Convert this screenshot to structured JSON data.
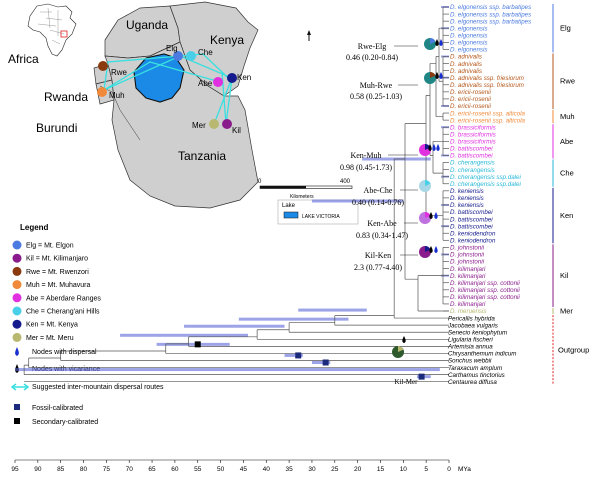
{
  "map": {
    "inset_label": "Africa",
    "countries": [
      {
        "id": "uganda",
        "name": "Uganda"
      },
      {
        "id": "kenya",
        "name": "Kenya"
      },
      {
        "id": "rwanda",
        "name": "Rwanda"
      },
      {
        "id": "burundi",
        "name": "Burundi"
      },
      {
        "id": "tanzania",
        "name": "Tanzania"
      }
    ],
    "mountains": [
      {
        "id": "Elg",
        "label": "Elg",
        "color": "#4b7be0"
      },
      {
        "id": "Che",
        "label": "Che",
        "color": "#49d0e8"
      },
      {
        "id": "Rwe",
        "label": "Rwe",
        "color": "#8b3a10"
      },
      {
        "id": "Abe",
        "label": "Abe",
        "color": "#e030e0"
      },
      {
        "id": "Ken",
        "label": "Ken",
        "color": "#151a8c"
      },
      {
        "id": "Muh",
        "label": "Muh",
        "color": "#f08a3a"
      },
      {
        "id": "Mer",
        "label": "Mer",
        "color": "#b8b870"
      },
      {
        "id": "Kil",
        "label": "Kil",
        "color": "#8a1b8c"
      }
    ],
    "scale": {
      "zero": "0",
      "max": "400",
      "unit": "Kilometers"
    },
    "lake_box": {
      "header": "Lake",
      "item": "LAKE VICTORIA"
    }
  },
  "legend": {
    "title": "Legend",
    "items": [
      {
        "label": "Elg = Mt. Elgon",
        "color": "#4b7be0"
      },
      {
        "label": "Kil = Mt. Kilimanjaro",
        "color": "#8a1b8c"
      },
      {
        "label": "Rwe = Mt. Rwenzori",
        "color": "#8b3a10"
      },
      {
        "label": "Muh = Mt. Muhavura",
        "color": "#f08a3a"
      },
      {
        "label": "Abe = Aberdare Ranges",
        "color": "#e030e0"
      },
      {
        "label": "Che = Cherang'ani Hills",
        "color": "#49d0e8"
      },
      {
        "label": "Ken = Mt. Kenya",
        "color": "#151a8c"
      },
      {
        "label": "Mer = Mt. Meru",
        "color": "#b8b870"
      }
    ],
    "symbols": [
      {
        "label": "Nodes with dispersal"
      },
      {
        "label": "Nodes with vicariance"
      },
      {
        "label": "Suggested inter-mountain dispersal routes"
      },
      {
        "label": "Fossil-calibrated"
      },
      {
        "label": "Secondary-calibrated"
      }
    ]
  },
  "node_labels": [
    {
      "name": "Rwe-Elg",
      "value": "0.46 (0.20-0.84)"
    },
    {
      "name": "Muh-Rwe",
      "value": "0.58 (0.25-1.03)"
    },
    {
      "name": "Ken-Muh",
      "value": "0.98 (0.45-1.73)"
    },
    {
      "name": "Abe-Che",
      "value": "0.40 (0.14-0.76)"
    },
    {
      "name": "Ken-Abe",
      "value": "0.83 (0.34-1.47)"
    },
    {
      "name": "Kil-Ken",
      "value": "2.3 (0.77-4.40)"
    },
    {
      "name": "Kil-Mer",
      "value": ""
    }
  ],
  "taxa": [
    {
      "name": "D. elgonensis ssp. barbatipes",
      "color": "#4b7be0"
    },
    {
      "name": "D. elgonensis ssp. barbatipes",
      "color": "#4b7be0"
    },
    {
      "name": "D. elgonensis ssp. barbatipes",
      "color": "#4b7be0"
    },
    {
      "name": "D. elgonensis",
      "color": "#4b7be0"
    },
    {
      "name": "D. elgonensis",
      "color": "#4b7be0"
    },
    {
      "name": "D. elgonensis",
      "color": "#4b7be0"
    },
    {
      "name": "D. elgonensis",
      "color": "#4b7be0"
    },
    {
      "name": "D. adnivalis",
      "color": "#b5561a"
    },
    {
      "name": "D. adnivalis",
      "color": "#b5561a"
    },
    {
      "name": "D. adnivalis",
      "color": "#b5561a"
    },
    {
      "name": "D. adnivalis ssp. friesiorum",
      "color": "#b5561a"
    },
    {
      "name": "D. adnivalis ssp. friesiorum",
      "color": "#b5561a"
    },
    {
      "name": "D. ericii-rosenii",
      "color": "#b5561a"
    },
    {
      "name": "D. ericii-rosenii",
      "color": "#b5561a"
    },
    {
      "name": "D. ericii-rosenii",
      "color": "#b5561a"
    },
    {
      "name": "D. ericii-rosenii ssp. alticola",
      "color": "#f08a3a"
    },
    {
      "name": "D. ericii-rosenii ssp. alticola",
      "color": "#f08a3a"
    },
    {
      "name": "D. brassiciformis",
      "color": "#e030e0"
    },
    {
      "name": "D. brassiciformis",
      "color": "#e030e0"
    },
    {
      "name": "D. brassiciformis",
      "color": "#e030e0"
    },
    {
      "name": "D. battiscombei",
      "color": "#e030e0"
    },
    {
      "name": "D. battiscombei",
      "color": "#e030e0"
    },
    {
      "name": "D. cherangensis",
      "color": "#29b8d8"
    },
    {
      "name": "D. cherangensis",
      "color": "#29b8d8"
    },
    {
      "name": "D. cherangensis ssp.dalei",
      "color": "#29b8d8"
    },
    {
      "name": "D. cherangensis ssp.dalei",
      "color": "#29b8d8"
    },
    {
      "name": "D. keniensis",
      "color": "#151a8c"
    },
    {
      "name": "D. keniensis",
      "color": "#151a8c"
    },
    {
      "name": "D. keniensis",
      "color": "#151a8c"
    },
    {
      "name": "D. battiscombei",
      "color": "#151a8c"
    },
    {
      "name": "D. battiscombei",
      "color": "#151a8c"
    },
    {
      "name": "D. battiscombei",
      "color": "#151a8c"
    },
    {
      "name": "D. keniodendron",
      "color": "#151a8c"
    },
    {
      "name": "D. keniodendron",
      "color": "#151a8c"
    },
    {
      "name": "D. johnstonii",
      "color": "#8a1b8c"
    },
    {
      "name": "D. johnstonii",
      "color": "#8a1b8c"
    },
    {
      "name": "D. johnstonii",
      "color": "#8a1b8c"
    },
    {
      "name": "D. kilimanjari",
      "color": "#8a1b8c"
    },
    {
      "name": "D. kilimanjari",
      "color": "#8a1b8c"
    },
    {
      "name": "D. kilimanjari ssp. cottonii",
      "color": "#8a1b8c"
    },
    {
      "name": "D. kilimanjari ssp. cottonii",
      "color": "#8a1b8c"
    },
    {
      "name": "D. kilimanjari ssp. cottonii",
      "color": "#8a1b8c"
    },
    {
      "name": "D. kilimanjari",
      "color": "#8a1b8c"
    },
    {
      "name": "D. meruensis",
      "color": "#b8b870"
    },
    {
      "name": "Pericallis hybrida",
      "color": "#000000"
    },
    {
      "name": "Jacobaea vulgaris",
      "color": "#000000"
    },
    {
      "name": "Senecio keniophytum",
      "color": "#000000"
    },
    {
      "name": "Ligularia fischeri",
      "color": "#000000"
    },
    {
      "name": "Artemisia annua",
      "color": "#000000"
    },
    {
      "name": "Chrysanthemum indicum",
      "color": "#000000"
    },
    {
      "name": "Sonchus webbii",
      "color": "#000000"
    },
    {
      "name": "Taraxacum amplum",
      "color": "#000000"
    },
    {
      "name": "Carthamus tinctorius",
      "color": "#000000"
    },
    {
      "name": "Centaurea diffusa",
      "color": "#000000"
    }
  ],
  "groups": [
    {
      "label": "Elg",
      "color": "#4b7be0",
      "from": 0,
      "to": 6
    },
    {
      "label": "Rwe",
      "color": "#b5561a",
      "from": 7,
      "to": 14
    },
    {
      "label": "Muh",
      "color": "#f08a3a",
      "from": 15,
      "to": 16
    },
    {
      "label": "Abe",
      "color": "#e030e0",
      "from": 17,
      "to": 21
    },
    {
      "label": "Che",
      "color": "#29b8d8",
      "from": 22,
      "to": 25
    },
    {
      "label": "Ken",
      "color": "#151a8c",
      "from": 26,
      "to": 33
    },
    {
      "label": "Kil",
      "color": "#8a1b8c",
      "from": 34,
      "to": 42
    },
    {
      "label": "Mer",
      "color": "#b8b870",
      "from": 43,
      "to": 43
    },
    {
      "label": "Outgroup",
      "color": "#e02020",
      "from": 44,
      "to": 53
    }
  ],
  "time_axis": {
    "unit": "MYa",
    "ticks": [
      "95",
      "90",
      "85",
      "80",
      "75",
      "70",
      "65",
      "60",
      "55",
      "50",
      "45",
      "40",
      "35",
      "30",
      "25",
      "20",
      "15",
      "10",
      "5",
      "0"
    ]
  }
}
